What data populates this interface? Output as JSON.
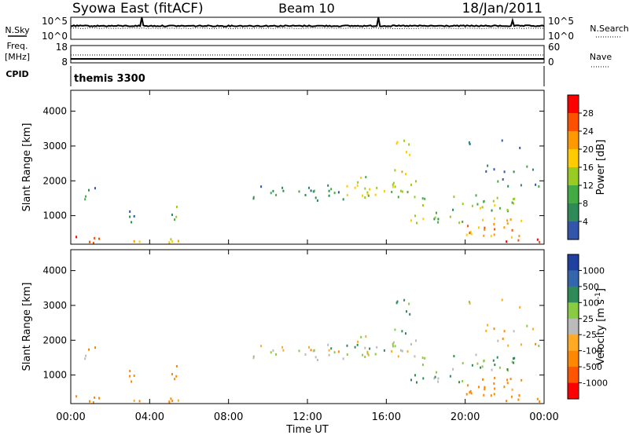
{
  "chart_data": {
    "type": "heatmap",
    "header": {
      "station": "Syowa East (fitACF)",
      "beam": "Beam 10",
      "date": "18/Jan/2011"
    },
    "top_panels": {
      "left_labels": [
        "N.Sky",
        "Freq.",
        "[MHz]",
        "CPID"
      ],
      "right_labels": [
        "N.Search",
        "Nave"
      ],
      "noise_ticks_left": [
        "10^5",
        "10^0"
      ],
      "noise_ticks_right": [
        "10^5",
        "10^0"
      ],
      "freq_ticks": [
        "18",
        "8"
      ],
      "nave_ticks": [
        "60",
        "0"
      ],
      "cpid_text": "themis 3300"
    },
    "x_axis": {
      "label": "Time UT",
      "ticks": [
        "00:00",
        "04:00",
        "08:00",
        "12:00",
        "16:00",
        "20:00",
        "00:00"
      ],
      "range_hours": [
        0,
        24
      ]
    },
    "y_axis": {
      "label": "Slant Range [km]",
      "ticks": [
        1000,
        2000,
        3000,
        4000
      ],
      "range_km": [
        180,
        4600
      ]
    },
    "power_panel": {
      "colorbar_label": "Power [dB]",
      "colorbar_ticks": [
        "28",
        "24",
        "20",
        "16",
        "12",
        "8",
        "4"
      ],
      "colors": [
        "#ff0000",
        "#ff5000",
        "#ff9900",
        "#ffcc00",
        "#99cc22",
        "#44aa44",
        "#2e8b57",
        "#3355aa",
        "#0000ff"
      ],
      "value_range_db": [
        0,
        30
      ]
    },
    "velocity_panel": {
      "colorbar_label": "Velocity [m s^-1]",
      "colorbar_ticks": [
        "1000",
        "500",
        "100",
        "25",
        "-25",
        "-100",
        "-500",
        "-1000"
      ],
      "colors": [
        "#2040a0",
        "#3366aa",
        "#2e8b57",
        "#88cc44",
        "#bbbbbb",
        "#ffaa22",
        "#ff8800",
        "#ff5500",
        "#ff0000"
      ],
      "value_range_ms": [
        -1000,
        1000
      ]
    },
    "scatter_regions": [
      {
        "t0": 0.0,
        "t1": 1.4,
        "r0": 200,
        "r1": 450,
        "power": 26,
        "velocity": -200,
        "density": 0.75
      },
      {
        "t0": 0.5,
        "t1": 1.3,
        "r0": 1400,
        "r1": 1900,
        "power": 6,
        "velocity": -80,
        "density": 0.3
      },
      {
        "t0": 2.5,
        "t1": 5.5,
        "r0": 200,
        "r1": 420,
        "power": 18,
        "velocity": -150,
        "density": 0.55
      },
      {
        "t0": 2.8,
        "t1": 3.2,
        "r0": 800,
        "r1": 1300,
        "power": 6,
        "velocity": -250,
        "density": 0.3
      },
      {
        "t0": 5.1,
        "t1": 5.6,
        "r0": 800,
        "r1": 1700,
        "power": 10,
        "velocity": -300,
        "density": 0.35
      },
      {
        "t0": 9.2,
        "t1": 14.0,
        "r0": 1400,
        "r1": 1900,
        "power": 7,
        "velocity": 0,
        "density": 0.45
      },
      {
        "t0": 13.5,
        "t1": 17.5,
        "r0": 1550,
        "r1": 2150,
        "power": 14,
        "velocity": 10,
        "density": 0.55
      },
      {
        "t0": 16.2,
        "t1": 17.2,
        "r0": 2200,
        "r1": 3300,
        "power": 16,
        "velocity": 150,
        "density": 0.4
      },
      {
        "t0": 17.2,
        "t1": 22.5,
        "r0": 800,
        "r1": 1700,
        "power": 12,
        "velocity": 80,
        "density": 0.35
      },
      {
        "t0": 20.0,
        "t1": 23.0,
        "r0": 400,
        "r1": 1000,
        "power": 22,
        "velocity": -200,
        "density": 0.6
      },
      {
        "t0": 21.8,
        "t1": 23.8,
        "r0": 200,
        "r1": 350,
        "power": 26,
        "velocity": -400,
        "density": 0.7
      },
      {
        "t0": 21.0,
        "t1": 24.0,
        "r0": 1700,
        "r1": 2500,
        "power": 6,
        "velocity": -30,
        "density": 0.25
      },
      {
        "t0": 18.5,
        "t1": 23.0,
        "r0": 2900,
        "r1": 3400,
        "power": 5,
        "velocity": 30,
        "density": 0.08
      }
    ]
  }
}
